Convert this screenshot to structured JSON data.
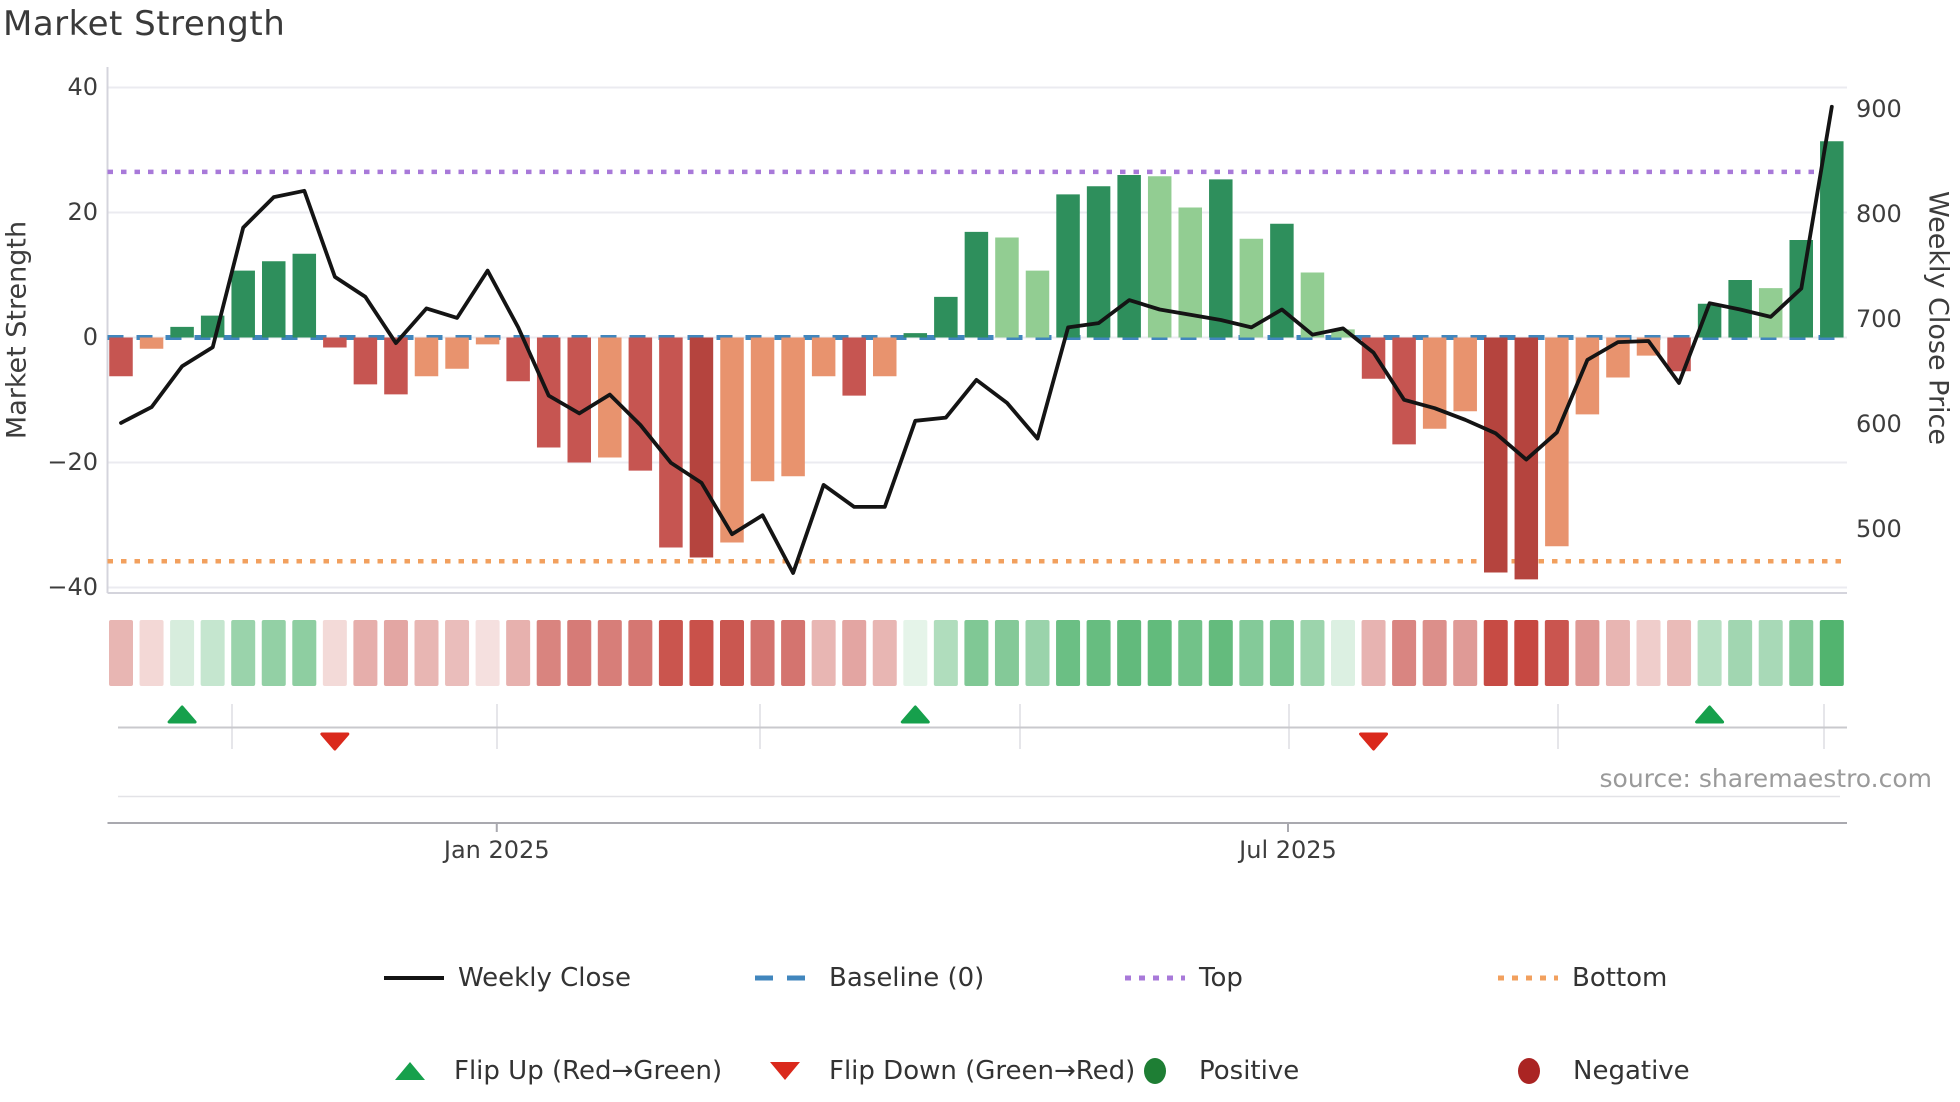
{
  "title": "Market Strength",
  "source": "source: sharemaestro.com",
  "axes": {
    "left": {
      "title": "Market Strength",
      "ticks": [
        "40",
        "20",
        "0",
        "−20",
        "−40"
      ],
      "tick_values": [
        40,
        20,
        0,
        -20,
        -40
      ]
    },
    "right": {
      "title": "Weekly Close Price",
      "ticks": [
        "900",
        "800",
        "700",
        "600",
        "500"
      ],
      "tick_values": [
        900,
        800,
        700,
        600,
        500
      ]
    },
    "x": {
      "ticks": [
        "Jan 2025",
        "Jul 2025"
      ],
      "tick_week_positions": [
        13.3,
        39.2
      ]
    }
  },
  "legend": {
    "row1": [
      {
        "label": "Weekly Close",
        "swatch": "black-line"
      },
      {
        "label": "Baseline (0)",
        "swatch": "blue-dashed-line"
      },
      {
        "label": "Top",
        "swatch": "purple-dotted-line"
      },
      {
        "label": "Bottom",
        "swatch": "orange-dotted-line"
      }
    ],
    "row2": [
      {
        "label": "Flip Up (Red→Green)",
        "swatch": "green-triangle-up"
      },
      {
        "label": "Flip Down (Green→Red)",
        "swatch": "red-triangle-down"
      },
      {
        "label": "Positive",
        "swatch": "green-circle"
      },
      {
        "label": "Negative",
        "swatch": "dark-red-circle"
      }
    ]
  },
  "colors": {
    "bar_positive_dark": "#2e8f5c",
    "bar_positive_light": "#92cd92",
    "bar_negative_red": "#c65551",
    "bar_negative_dark_red": "#b5443e",
    "bar_negative_salmon": "#e8936e",
    "weekly_close_line": "#141414",
    "baseline": "#4186bd",
    "top_threshold": "#a879d9",
    "bottom_threshold": "#f2a05e",
    "flip_up_marker": "#16a04c",
    "flip_down_marker": "#da291c",
    "legend_positive_dot": "#1e7e34",
    "legend_negative_dot": "#aa2423",
    "gridline": "#ebebf0",
    "spine": "#d4d4dc",
    "bottom_axis": "#a9a9af",
    "heatmap_positive_base_rgb": [
      60,
      170,
      92
    ],
    "heatmap_negative_base_rgb": [
      197,
      69,
      62
    ]
  },
  "chart_data": {
    "type": "bar",
    "subtype": "weekly market-strength bars + weekly-close price line + heatmap strip + flip markers",
    "title": "Market Strength",
    "weeks": 57,
    "xlabel": "",
    "ylabel_left": "Market Strength",
    "ylabel_right": "Weekly Close Price",
    "left_ylim": [
      -41,
      43.5
    ],
    "right_ylim": [
      440,
      941
    ],
    "baseline": 0,
    "top_threshold": 26.5,
    "bottom_threshold": -35.8,
    "strength_bars": [
      -6.2,
      -1.8,
      1.7,
      3.5,
      10.7,
      12.2,
      13.4,
      -1.6,
      -7.5,
      -9.1,
      -6.2,
      -5.0,
      -1.1,
      -7.0,
      -17.6,
      -20.0,
      -19.2,
      -21.3,
      -33.6,
      -35.2,
      -32.8,
      -23.0,
      -22.2,
      -6.2,
      -9.3,
      -6.2,
      0.7,
      6.5,
      16.9,
      16.0,
      10.7,
      22.9,
      24.2,
      26.0,
      25.8,
      20.8,
      25.3,
      15.8,
      18.2,
      10.4,
      1.3,
      -6.6,
      -17.1,
      -14.6,
      -11.8,
      -37.6,
      -38.7,
      -33.4,
      -12.3,
      -6.4,
      -2.9,
      -5.4,
      5.4,
      9.2,
      7.9,
      15.6,
      31.4
    ],
    "weekly_close": [
      602,
      617,
      656,
      674,
      788,
      817,
      823,
      741,
      722,
      678,
      711,
      702,
      747,
      693,
      628,
      611,
      629,
      600,
      564,
      545,
      496,
      514,
      459,
      543,
      522,
      522,
      604,
      607,
      643,
      621,
      587,
      693,
      697,
      719,
      710,
      705,
      700,
      693,
      710,
      686,
      692,
      669,
      624,
      616,
      605,
      592,
      567,
      593,
      662,
      679,
      680,
      640,
      716,
      710,
      703,
      730,
      903
    ],
    "flips": [
      {
        "week": 3,
        "type": "up"
      },
      {
        "week": 8,
        "type": "down"
      },
      {
        "week": 27,
        "type": "up"
      },
      {
        "week": 42,
        "type": "down"
      },
      {
        "week": 53,
        "type": "up"
      }
    ],
    "legend_position": "bottom",
    "grid": "horizontal-light"
  }
}
